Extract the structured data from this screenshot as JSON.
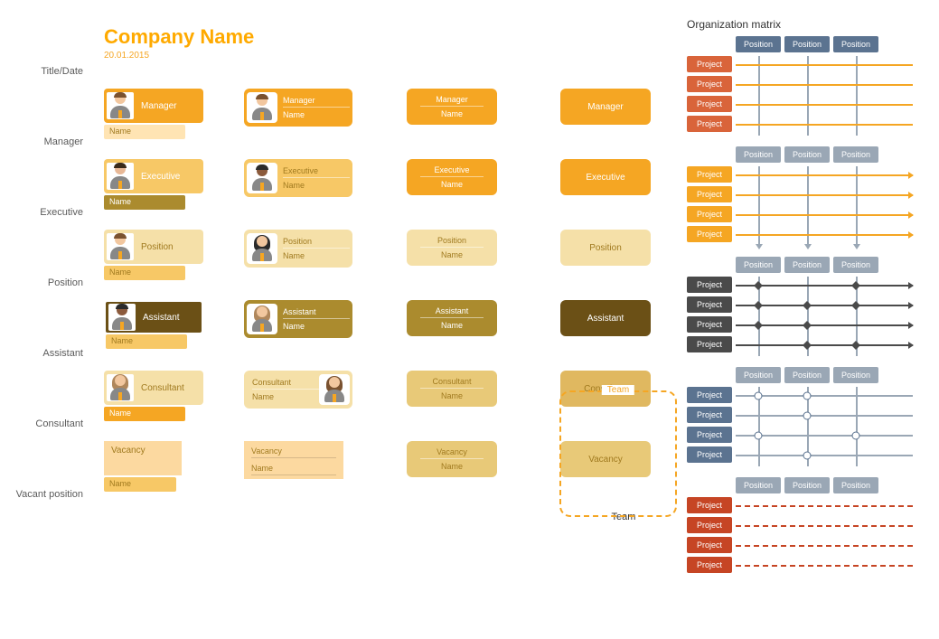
{
  "colors": {
    "orange": "#f5a623",
    "orange_bright": "#ffaa00",
    "orange_light": "#ffe4b3",
    "orange_mid": "#f7c866",
    "brown_dark": "#6b5016",
    "brown": "#a07a1f",
    "khaki": "#ab8b2e",
    "cream": "#f5e0a8",
    "cream_dark": "#e8c978",
    "tan": "#e0b860",
    "peach": "#fcd9a0",
    "slate": "#5b7390",
    "slate_light": "#9aa7b5",
    "gray": "#8c8c8c",
    "red_orange": "#d9643a",
    "red": "#c64524",
    "skin1": "#f2c79f",
    "skin2": "#8b5a3c",
    "skin3": "#e8b896",
    "hair1": "#7a5230",
    "hair2": "#3a2a1a",
    "hair3": "#2b2b2b",
    "hair4": "#b0875c",
    "suit": "#888",
    "tie": "#f5a623",
    "white": "#ffffff",
    "text_gray": "#5a5a5a"
  },
  "title": {
    "label": "Title/Date",
    "company": "Company Name",
    "date": "20.01.2015",
    "company_color": "#ffaa00",
    "date_color": "#f5a623"
  },
  "rows": [
    {
      "label": "Manager",
      "colorA": "#f5a623",
      "textA": "#ffffff",
      "subA": "#ffe4b3",
      "subTextA": "#a07a1f",
      "colorB": "#f5a623",
      "textB": "#ffffff",
      "colorC": "#f5a623",
      "textC": "#ffffff",
      "colorD": "#f5a623",
      "textD": "#ffffff",
      "role": "Manager",
      "name": "Name",
      "avatar1": {
        "skin": "#f2c79f",
        "hair": "#7a5230",
        "suit": "#888",
        "tie": "#f5a623",
        "female": false
      },
      "avatar2": {
        "skin": "#f2c79f",
        "hair": "#7a5230",
        "suit": "#888",
        "tie": "#f5a623",
        "female": false
      }
    },
    {
      "label": "Executive",
      "colorA": "#f7c866",
      "textA": "#ffffff",
      "subA": "#ab8b2e",
      "subTextA": "#ffffff",
      "colorB": "#f7c866",
      "textB": "#a07a1f",
      "colorC": "#f5a623",
      "textC": "#ffffff",
      "colorD": "#f5a623",
      "textD": "#ffffff",
      "role": "Executive",
      "name": "Name",
      "avatar1": {
        "skin": "#e8b896",
        "hair": "#3a2a1a",
        "suit": "#888",
        "tie": "#f5a623",
        "female": false
      },
      "avatar2": {
        "skin": "#8b5a3c",
        "hair": "#2b2b2b",
        "suit": "#888",
        "tie": "#f5a623",
        "female": false
      }
    },
    {
      "label": "Position",
      "colorA": "#f5e0a8",
      "textA": "#a07a1f",
      "subA": "#f7c866",
      "subTextA": "#a07a1f",
      "colorB": "#f5e0a8",
      "textB": "#a07a1f",
      "colorC": "#f5e0a8",
      "textC": "#a07a1f",
      "colorD": "#f5e0a8",
      "textD": "#a07a1f",
      "role": "Position",
      "name": "Name",
      "avatar1": {
        "skin": "#f2c79f",
        "hair": "#7a5230",
        "suit": "#888",
        "tie": "#f5a623",
        "female": false
      },
      "avatar2": {
        "skin": "#f2c79f",
        "hair": "#2b2b2b",
        "suit": "#888",
        "tie": "#f5a623",
        "female": true
      }
    },
    {
      "label": "Assistant",
      "colorA": "#6b5016",
      "textA": "#ffffff",
      "subA": "#f7c866",
      "subTextA": "#a07a1f",
      "borderA": "#ffffff",
      "colorB": "#ab8b2e",
      "textB": "#ffffff",
      "colorC": "#ab8b2e",
      "textC": "#ffffff",
      "colorD": "#6b5016",
      "textD": "#ffffff",
      "role": "Assistant",
      "name": "Name",
      "avatar1": {
        "skin": "#8b5a3c",
        "hair": "#2b2b2b",
        "suit": "#888",
        "tie": "#f5a623",
        "female": false
      },
      "avatar2": {
        "skin": "#f2c79f",
        "hair": "#b0875c",
        "suit": "#888",
        "tie": "#f5a623",
        "female": true
      }
    },
    {
      "label": "Consultant",
      "colorA": "#f5e0a8",
      "textA": "#a07a1f",
      "subA": "#f5a623",
      "subTextA": "#ffffff",
      "colorB": "#f5e0a8",
      "textB": "#a07a1f",
      "avatar_right": true,
      "colorC": "#e8c978",
      "textC": "#a07a1f",
      "colorD": "#e0b860",
      "textD": "#a07a1f",
      "role": "Consultant",
      "name": "Name",
      "avatar1": {
        "skin": "#f2c79f",
        "hair": "#b0875c",
        "suit": "#888",
        "tie": "#f5a623",
        "female": true
      },
      "avatar2": {
        "skin": "#f2c79f",
        "hair": "#7a5230",
        "suit": "#888",
        "tie": "#f5a623",
        "female": true
      }
    }
  ],
  "vacant": {
    "label": "Vacant position",
    "role": "Vacancy",
    "name": "Name",
    "colorA": "#fcd9a0",
    "textA": "#a07a1f",
    "subA": "#f7c866",
    "subTextA": "#a07a1f",
    "colorB": "#fcd9a0",
    "textB": "#a07a1f",
    "colorC": "#e8c978",
    "textC": "#a07a1f",
    "colorD": "#e8c978",
    "textD": "#a07a1f"
  },
  "team": {
    "label_top": "Team",
    "label_bottom": "Team",
    "border": "#f5a623",
    "text": "#f5a623"
  },
  "matrices": {
    "title": "Organization matrix",
    "col_label": "Position",
    "row_label": "Project",
    "m1": {
      "head_bg": "#5b7390",
      "row_bg": "#d9643a",
      "line_h": "#f5a623",
      "line_v": "#9aa7b5"
    },
    "m2": {
      "head_bg": "#9aa7b5",
      "row_bg": "#f5a623",
      "line_h": "#f5a623",
      "line_v": "#9aa7b5"
    },
    "m3": {
      "head_bg": "#9aa7b5",
      "row_bg": "#4a4a4a",
      "line_h": "#4a4a4a",
      "line_v": "#9aa7b5",
      "node": "#4a4a4a"
    },
    "m4": {
      "head_bg": "#9aa7b5",
      "row_bg": "#5b7390",
      "line_h": "#9aa7b5",
      "line_v": "#9aa7b5",
      "node_border": "#5b7390"
    },
    "m5": {
      "head_bg": "#9aa7b5",
      "row_bg": "#c64524",
      "line_h": "#c64524",
      "line_v": "#9aa7b5"
    }
  }
}
